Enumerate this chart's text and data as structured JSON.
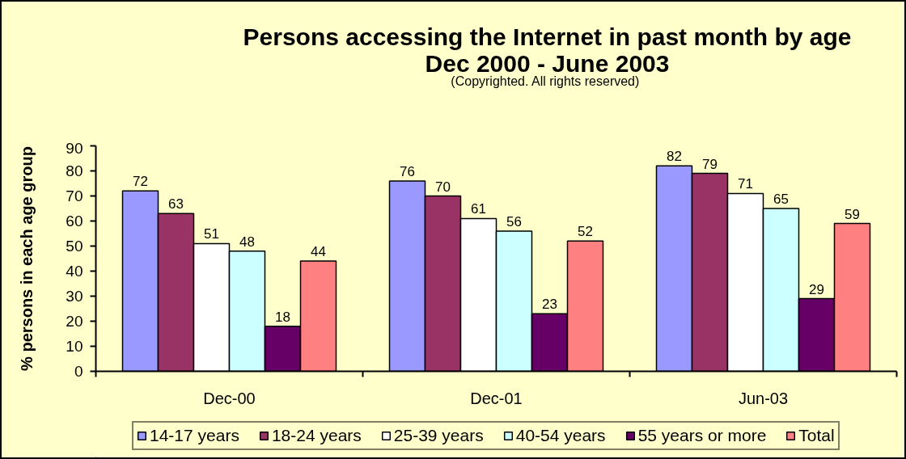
{
  "chart_data": {
    "type": "bar",
    "title": "Persons accessing the Internet in past month by age",
    "subtitle": "Dec 2000 - June 2003",
    "annotations": [
      "(Copyrighted.  All rights reserved)"
    ],
    "ylabel": "% persons in each age group",
    "categories": [
      "Dec-00",
      "Dec-01",
      "Jun-03"
    ],
    "series": [
      {
        "name": "14-17 years",
        "color": "#9999ff",
        "values": [
          72,
          76,
          82
        ]
      },
      {
        "name": "18-24 years",
        "color": "#993366",
        "values": [
          63,
          70,
          79
        ]
      },
      {
        "name": "25-39 years",
        "color": "#ffffff",
        "values": [
          51,
          61,
          71
        ]
      },
      {
        "name": "40-54 years",
        "color": "#ccffff",
        "values": [
          48,
          56,
          65
        ]
      },
      {
        "name": "55 years or more",
        "color": "#660066",
        "values": [
          18,
          23,
          29
        ]
      },
      {
        "name": "Total",
        "color": "#ff8080",
        "values": [
          44,
          52,
          59
        ]
      }
    ],
    "ylim": [
      0,
      90
    ],
    "yticks": [
      0,
      10,
      20,
      30,
      40,
      50,
      60,
      70,
      80,
      90
    ],
    "grid": false,
    "legend": "bottom",
    "data_labels": true
  }
}
